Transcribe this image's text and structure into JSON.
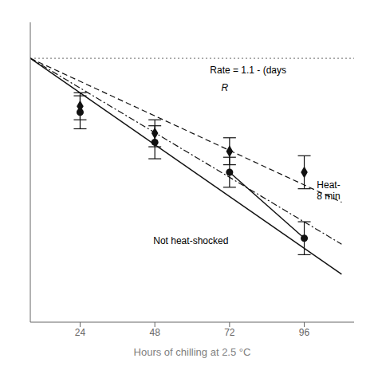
{
  "chart_data": {
    "type": "scatter",
    "xlabel": "Hours of chilling at 2.5 °C",
    "xlim": [
      8,
      112
    ],
    "ylim": [
      0.1,
      1.1
    ],
    "xticks": [
      24,
      48,
      72,
      96
    ],
    "tick_labels": "x",
    "color": "#111111",
    "annotations": [
      "Rate = 1.1 - (days",
      "R",
      "Heat-\n8 min",
      "Not heat-shocked"
    ],
    "series": [
      {
        "type": "line",
        "line_style": "dotted",
        "color": "#888888",
        "x": [
          8,
          112
        ],
        "values": [
          0.98,
          0.98
        ]
      },
      {
        "type": "line",
        "line_style": "solid",
        "x": [
          8,
          108
        ],
        "values": [
          0.98,
          0.26
        ]
      },
      {
        "type": "line",
        "line_style": "dashed",
        "x": [
          8,
          108
        ],
        "values": [
          0.98,
          0.5
        ]
      },
      {
        "type": "line",
        "line_style": "dashdot",
        "x": [
          8,
          108
        ],
        "values": [
          0.98,
          0.36
        ]
      },
      {
        "type": "scatter",
        "marker": "circle",
        "x": [
          24,
          48,
          72,
          96
        ],
        "values": [
          0.8,
          0.7,
          0.6,
          0.38
        ],
        "errors": [
          0.055,
          0.055,
          0.05,
          0.055
        ]
      },
      {
        "type": "scatter",
        "marker": "diamond",
        "x": [
          24,
          48,
          72,
          96
        ],
        "values": [
          0.82,
          0.73,
          0.67,
          0.6
        ],
        "errors": [
          0.045,
          0.045,
          0.045,
          0.055
        ]
      },
      {
        "type": "line",
        "line_style": "solid",
        "x": [
          72,
          96
        ],
        "values": [
          0.6,
          0.38
        ]
      }
    ]
  }
}
